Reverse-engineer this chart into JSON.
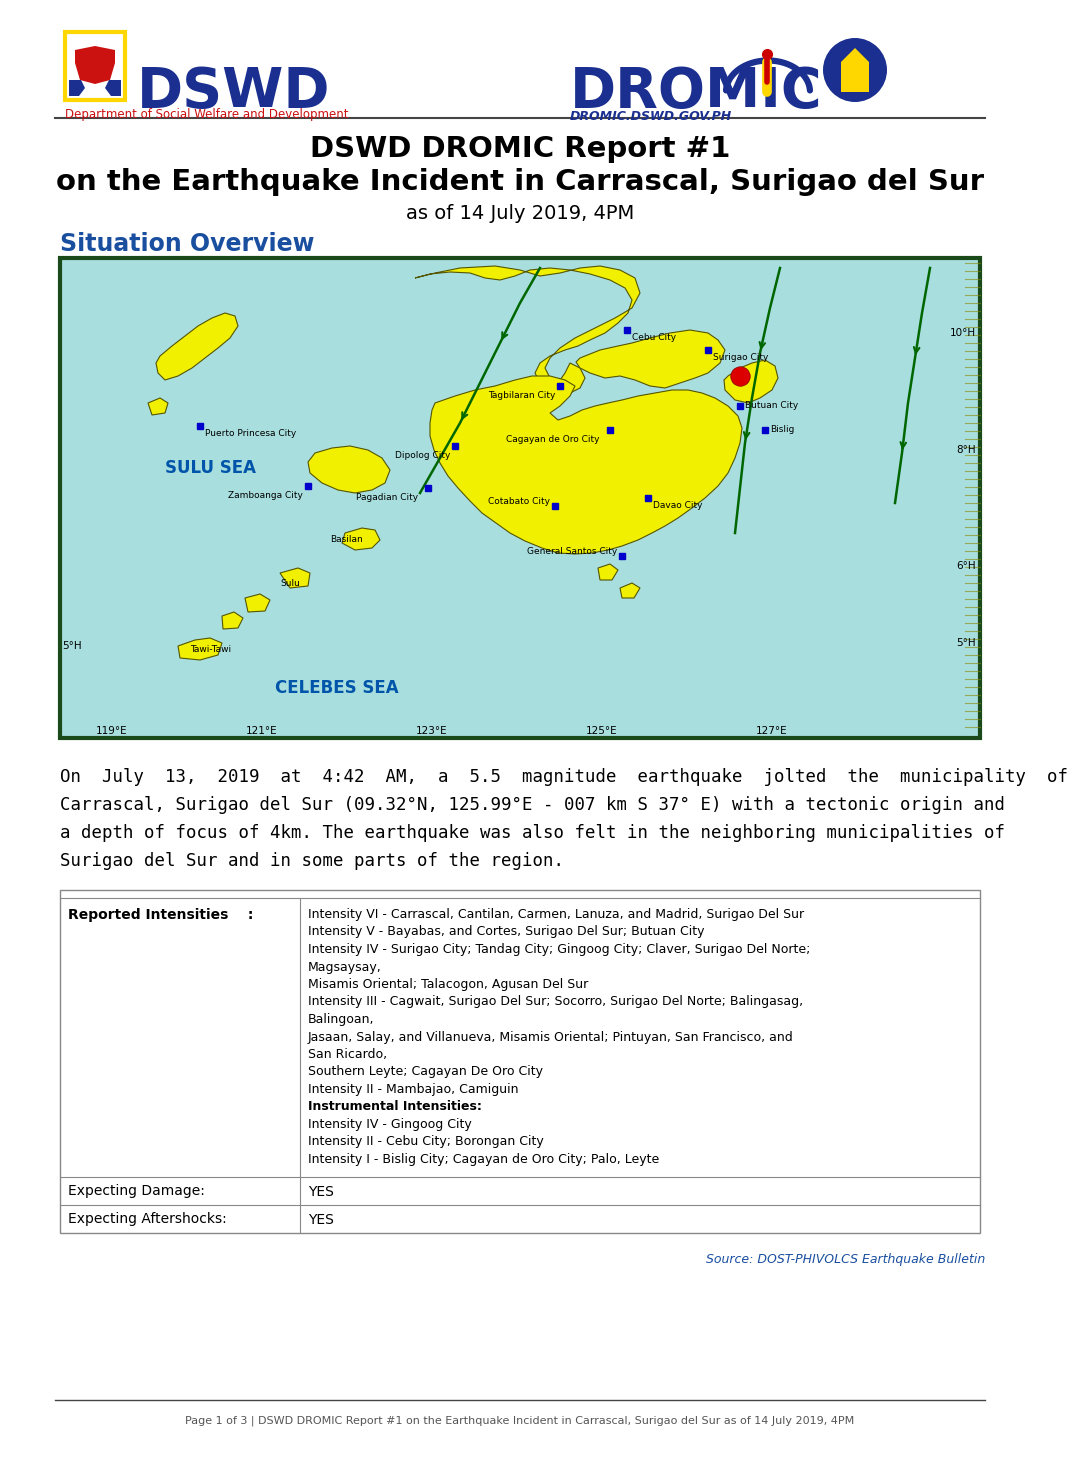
{
  "title_line1": "DSWD DROMIC Report #1",
  "title_line2": "on the Earthquake Incident in Carrascal, Surigao del Sur",
  "title_line3": "as of 14 July 2019, 4PM",
  "section_title": "Situation Overview",
  "body_text_line1": "On  July  13,  2019  at  4:42  AM,  a  5.5  magnitude  earthquake  jolted  the  municipality  of",
  "body_text_line2": "Carrascal, Surigao del Sur (09.32°N, 125.99°E - 007 km S 37° E) with a tectonic origin and",
  "body_text_line3": "a depth of focus of 4km. The earthquake was also felt in the neighboring municipalities of",
  "body_text_line4": "Surigao del Sur and in some parts of the region.",
  "intensity_lines": [
    "Intensity VI - Carrascal, Cantilan, Carmen, Lanuza, and Madrid, Surigao Del Sur",
    "Intensity V - Bayabas, and Cortes, Surigao Del Sur; Butuan City",
    "Intensity IV - Surigao City; Tandag City; Gingoog City; Claver, Surigao Del Norte;",
    "Magsaysay,",
    "Misamis Oriental; Talacogon, Agusan Del Sur",
    "Intensity III - Cagwait, Surigao Del Sur; Socorro, Surigao Del Norte; Balingasag,",
    "Balingoan,",
    "Jasaan, Salay, and Villanueva, Misamis Oriental; Pintuyan, San Francisco, and",
    "San Ricardo,",
    "Southern Leyte; Cagayan De Oro City",
    "Intensity II - Mambajao, Camiguin",
    "Instrumental Intensities:",
    "Intensity IV - Gingoog City",
    "Intensity II - Cebu City; Borongan City",
    "Intensity I - Bislig City; Cagayan de Oro City; Palo, Leyte"
  ],
  "bold_lines": [
    11
  ],
  "source_text": "Source: DOST-PHIVOLCS Earthquake Bulletin",
  "footer_text": "Page 1 of 3│ DSWD DROMIC Report #1 on the Earthquake Incident in Carrascal, Surigao del Sur as of 14 July 2019, 4PM",
  "footer_text2": "Page 1 of 3 | DSWD DROMIC Report #1 on the Earthquake Incident in Carrascal, Surigao del Sur as of 14 July 2019, 4PM",
  "title_color": "#000000",
  "section_color": "#1a4fa0",
  "source_color": "#1a4fa0",
  "footer_color": "#555555",
  "bg_color": "#ffffff",
  "dswd_logo_color": "#1a2f8f",
  "dromic_logo_color": "#1a2f8f",
  "map_bg": "#a8dede",
  "map_land": "#f0f000",
  "map_border": "#1a4a1a",
  "city_color": "#0000cc",
  "epi_color": "#dd0000",
  "sea_label_color": "#0055aa",
  "storm_color": "#006600"
}
